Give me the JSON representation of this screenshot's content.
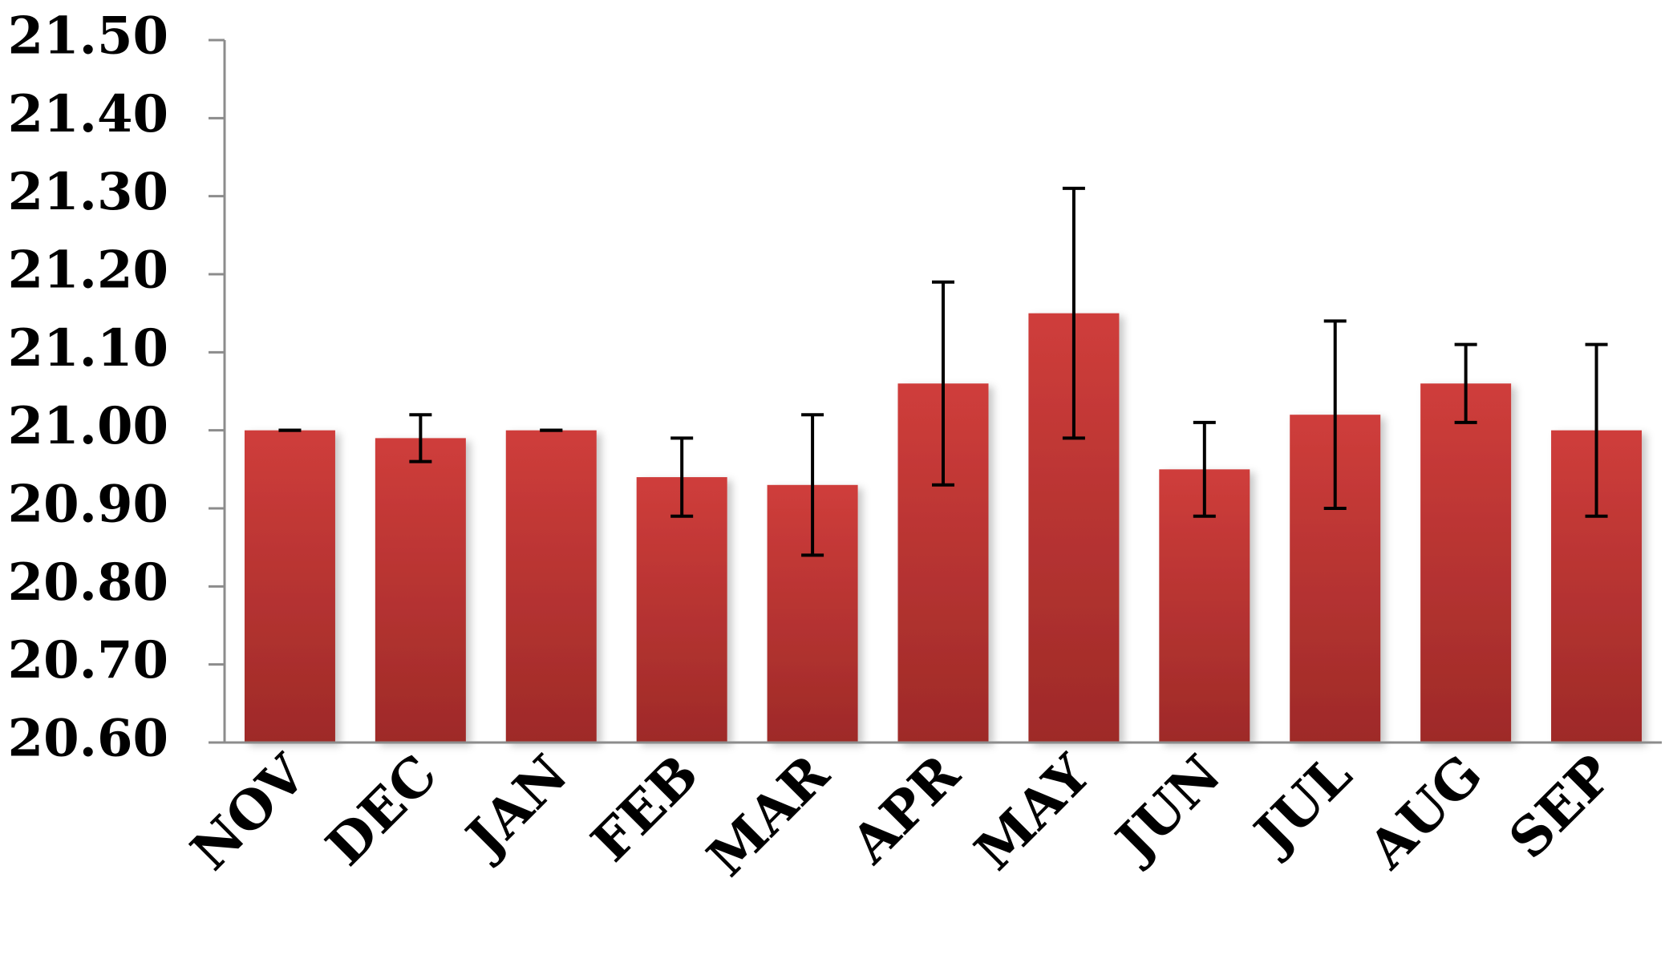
{
  "chart_data": {
    "type": "bar",
    "categories": [
      "NOV",
      "DEC",
      "JAN",
      "FEB",
      "MAR",
      "APR",
      "MAY",
      "JUN",
      "JUL",
      "AUG",
      "SEP"
    ],
    "values": [
      21.0,
      20.99,
      21.0,
      20.94,
      20.93,
      21.06,
      21.15,
      20.95,
      21.02,
      21.06,
      21.0
    ],
    "errors": [
      0.0,
      0.03,
      0.0,
      0.05,
      0.09,
      0.13,
      0.16,
      0.06,
      0.12,
      0.05,
      0.11
    ],
    "ylim": [
      20.6,
      21.5
    ],
    "yticks": [
      "20.60",
      "20.70",
      "20.80",
      "20.90",
      "21.00",
      "21.10",
      "21.20",
      "21.30",
      "21.40",
      "21.50"
    ],
    "title": "",
    "xlabel": "",
    "ylabel": "",
    "grid": false,
    "legend": "none",
    "colors": {
      "bar_top": "#cf3d3b",
      "bar_bottom": "#9e2a28",
      "axis": "#8c8c8c",
      "error": "#000000"
    }
  }
}
